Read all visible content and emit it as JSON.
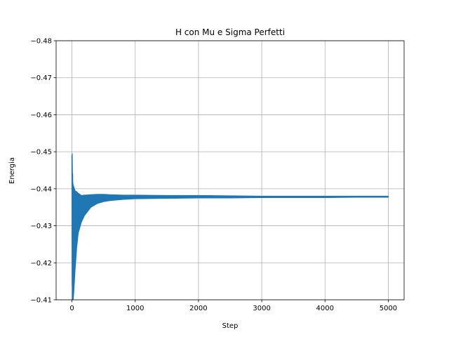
{
  "chart_data": {
    "type": "line",
    "title": "H con Mu e Sigma Perfetti",
    "xlabel": "Step",
    "ylabel": "Energia",
    "xlim": [
      -250,
      5250
    ],
    "ylim": [
      -0.41,
      -0.48
    ],
    "y_axis_inverted": true,
    "x_ticks": [
      0,
      1000,
      2000,
      3000,
      4000,
      5000
    ],
    "x_tick_labels": [
      "0",
      "1000",
      "2000",
      "3000",
      "4000",
      "5000"
    ],
    "y_ticks": [
      -0.48,
      -0.47,
      -0.46,
      -0.45,
      -0.44,
      -0.43,
      -0.42,
      -0.41
    ],
    "y_tick_labels": [
      "−0.48",
      "−0.47",
      "−0.46",
      "−0.45",
      "−0.44",
      "−0.43",
      "−0.42",
      "−0.41"
    ],
    "grid": true,
    "series_color": "#1f77b4",
    "series": [
      {
        "x": [
          0,
          5,
          10,
          20,
          30,
          50,
          75,
          100,
          150,
          200,
          300,
          400,
          500,
          600,
          800,
          1000,
          1500,
          2000,
          2500,
          3000,
          3500,
          4000,
          4500,
          5000
        ],
        "y": [
          -0.449,
          -0.414,
          -0.444,
          -0.418,
          -0.44,
          -0.426,
          -0.436,
          -0.431,
          -0.4355,
          -0.4345,
          -0.4365,
          -0.4372,
          -0.4374,
          -0.4376,
          -0.4378,
          -0.4378,
          -0.4378,
          -0.4378,
          -0.4378,
          -0.4378,
          -0.4378,
          -0.4378,
          -0.4378,
          -0.4378
        ],
        "band_low": [
          -0.449,
          -0.41,
          -0.41,
          -0.41,
          -0.412,
          -0.418,
          -0.424,
          -0.428,
          -0.431,
          -0.4328,
          -0.435,
          -0.436,
          -0.4365,
          -0.4368,
          -0.4371,
          -0.4373,
          -0.4374,
          -0.4375,
          -0.4375,
          -0.4376,
          -0.4376,
          -0.4376,
          -0.4377,
          -0.4377
        ],
        "band_high": [
          -0.449,
          -0.4495,
          -0.442,
          -0.441,
          -0.4405,
          -0.4395,
          -0.4392,
          -0.4388,
          -0.4382,
          -0.4383,
          -0.4384,
          -0.4385,
          -0.4385,
          -0.4384,
          -0.4383,
          -0.4383,
          -0.4382,
          -0.4382,
          -0.4381,
          -0.438,
          -0.438,
          -0.438,
          -0.438,
          -0.438
        ]
      }
    ]
  }
}
